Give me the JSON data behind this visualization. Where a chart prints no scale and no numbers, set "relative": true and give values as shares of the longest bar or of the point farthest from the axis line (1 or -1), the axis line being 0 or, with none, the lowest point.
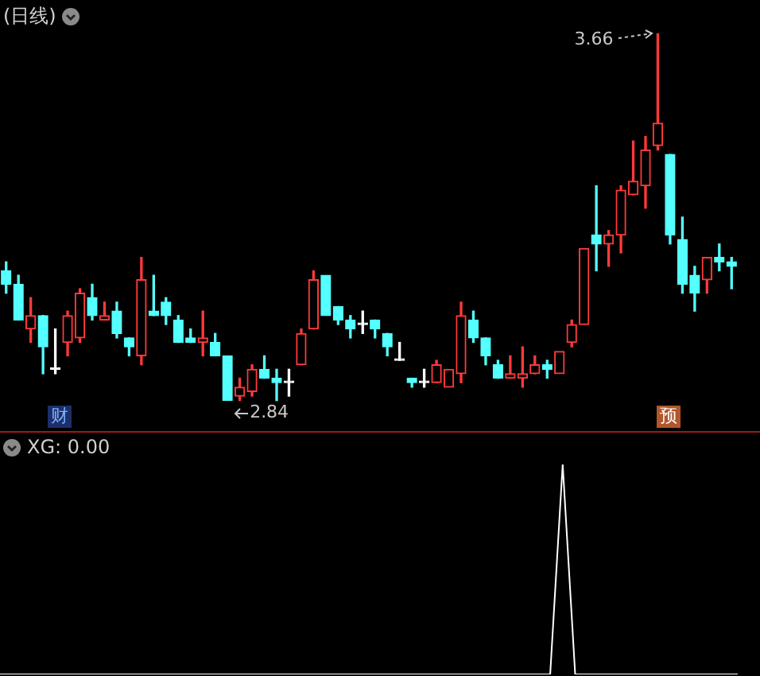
{
  "chart_data": [
    {
      "type": "candlestick",
      "title": "(日线)",
      "categories": [
        null,
        null,
        null,
        null,
        null,
        null,
        null,
        null,
        null,
        null,
        null,
        null,
        null,
        null,
        null,
        null,
        null,
        null,
        null,
        null,
        null,
        null,
        null,
        null,
        null,
        null,
        null,
        null,
        null,
        null,
        null,
        null,
        null,
        null,
        null,
        null,
        null,
        null,
        null,
        null,
        null,
        null,
        null,
        null,
        null,
        null,
        null,
        null,
        null,
        null,
        null,
        null,
        null,
        null,
        null,
        null,
        null,
        null,
        null,
        null
      ],
      "ohlc": [
        [
          3.13,
          3.15,
          3.08,
          3.1
        ],
        [
          3.1,
          3.12,
          3.02,
          3.02
        ],
        [
          3.0,
          3.07,
          2.97,
          3.03
        ],
        [
          3.03,
          3.03,
          2.9,
          2.96
        ],
        [
          2.91,
          3.0,
          2.9,
          2.91
        ],
        [
          2.97,
          3.04,
          2.94,
          3.03
        ],
        [
          2.98,
          3.09,
          2.97,
          3.08
        ],
        [
          3.07,
          3.1,
          3.02,
          3.03
        ],
        [
          3.02,
          3.06,
          3.02,
          3.03
        ],
        [
          3.04,
          3.06,
          2.98,
          2.99
        ],
        [
          2.98,
          2.98,
          2.94,
          2.96
        ],
        [
          2.94,
          3.16,
          2.92,
          3.11
        ],
        [
          3.04,
          3.12,
          3.03,
          3.03
        ],
        [
          3.06,
          3.07,
          3.01,
          3.03
        ],
        [
          3.02,
          3.03,
          2.97,
          2.97
        ],
        [
          2.98,
          3.0,
          2.97,
          2.97
        ],
        [
          2.97,
          3.04,
          2.94,
          2.98
        ],
        [
          2.97,
          2.99,
          2.94,
          2.94
        ],
        [
          2.94,
          2.94,
          2.84,
          2.84
        ],
        [
          2.85,
          2.89,
          2.84,
          2.87
        ],
        [
          2.86,
          2.92,
          2.85,
          2.91
        ],
        [
          2.91,
          2.94,
          2.89,
          2.89
        ],
        [
          2.89,
          2.91,
          2.84,
          2.88
        ],
        [
          2.88,
          2.91,
          2.85,
          2.88
        ],
        [
          2.92,
          3.0,
          2.92,
          2.99
        ],
        [
          3.0,
          3.13,
          3.0,
          3.11
        ],
        [
          3.12,
          3.12,
          3.03,
          3.03
        ],
        [
          3.05,
          3.05,
          3.01,
          3.02
        ],
        [
          3.02,
          3.03,
          2.98,
          3.0
        ],
        [
          3.01,
          3.04,
          2.99,
          3.01
        ],
        [
          3.02,
          3.02,
          2.98,
          3.0
        ],
        [
          2.99,
          2.99,
          2.94,
          2.96
        ],
        [
          2.93,
          2.97,
          2.93,
          2.93
        ],
        [
          2.89,
          2.89,
          2.87,
          2.88
        ],
        [
          2.88,
          2.91,
          2.87,
          2.88
        ],
        [
          2.88,
          2.93,
          2.88,
          2.92
        ],
        [
          2.87,
          2.91,
          2.87,
          2.91
        ],
        [
          2.9,
          3.06,
          2.88,
          3.03
        ],
        [
          3.02,
          3.04,
          2.97,
          2.98
        ],
        [
          2.98,
          2.98,
          2.92,
          2.94
        ],
        [
          2.92,
          2.93,
          2.89,
          2.89
        ],
        [
          2.89,
          2.94,
          2.89,
          2.9
        ],
        [
          2.89,
          2.96,
          2.87,
          2.9
        ],
        [
          2.9,
          2.94,
          2.9,
          2.92
        ],
        [
          2.92,
          2.93,
          2.89,
          2.91
        ],
        [
          2.9,
          2.95,
          2.9,
          2.95
        ],
        [
          2.97,
          3.02,
          2.96,
          3.01
        ],
        [
          3.01,
          3.18,
          3.01,
          3.18
        ],
        [
          3.21,
          3.32,
          3.13,
          3.19
        ],
        [
          3.19,
          3.22,
          3.14,
          3.21
        ],
        [
          3.21,
          3.32,
          3.17,
          3.31
        ],
        [
          3.3,
          3.42,
          3.3,
          3.33
        ],
        [
          3.32,
          3.43,
          3.27,
          3.4
        ],
        [
          3.41,
          3.66,
          3.4,
          3.46
        ],
        [
          3.39,
          3.39,
          3.19,
          3.21
        ],
        [
          3.2,
          3.25,
          3.08,
          3.1
        ],
        [
          3.12,
          3.14,
          3.04,
          3.08
        ],
        [
          3.11,
          3.16,
          3.08,
          3.16
        ],
        [
          3.16,
          3.19,
          3.13,
          3.15
        ],
        [
          3.15,
          3.16,
          3.09,
          3.14
        ]
      ],
      "annotations": [
        "3.66",
        "2.84",
        "财",
        "预"
      ]
    },
    {
      "type": "line",
      "title": "XG: 0.00",
      "relative": true,
      "categories": [
        null,
        null,
        null,
        null,
        null,
        null,
        null,
        null,
        null,
        null,
        null,
        null,
        null,
        null,
        null,
        null,
        null,
        null,
        null,
        null,
        null,
        null,
        null,
        null,
        null,
        null,
        null,
        null,
        null,
        null,
        null,
        null,
        null,
        null,
        null,
        null,
        null,
        null,
        null,
        null,
        null,
        null,
        null,
        null,
        null,
        null,
        null,
        null,
        null,
        null,
        null,
        null,
        null,
        null,
        null,
        null,
        null,
        null,
        null,
        null
      ],
      "series": [
        {
          "color": "#ffffff",
          "values": [
            0,
            0,
            0,
            0,
            0,
            0,
            0,
            0,
            0,
            0,
            0,
            0,
            0,
            0,
            0,
            0,
            0,
            0,
            0,
            0,
            0,
            0,
            0,
            0,
            0,
            0,
            0,
            0,
            0,
            0,
            0,
            0,
            0,
            0,
            0,
            0,
            0,
            0,
            0,
            0,
            0,
            0,
            0,
            0,
            0,
            1,
            0,
            0,
            0,
            0,
            0,
            0,
            0,
            0,
            0,
            0,
            0,
            0,
            0,
            0
          ]
        }
      ]
    }
  ]
}
